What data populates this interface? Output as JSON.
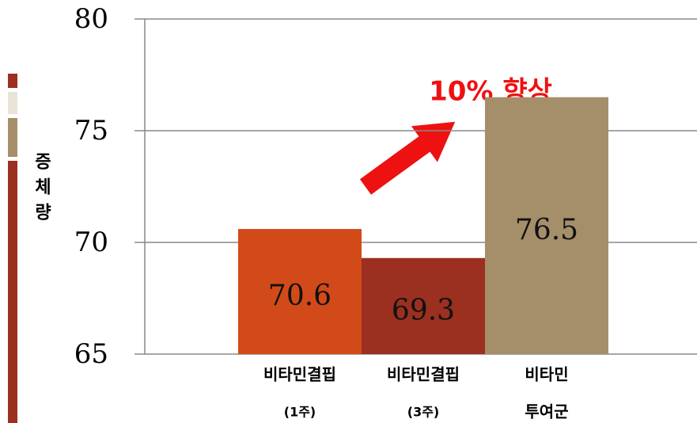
{
  "chart_data": {
    "type": "bar",
    "y_label": "증체량",
    "annotation": "10% 향상",
    "categories": [
      [
        "비타민결핍",
        "(1주)"
      ],
      [
        "비타민결핍",
        "(3주)"
      ],
      [
        "비타민",
        "투여군"
      ]
    ],
    "values": [
      70.6,
      69.3,
      76.5
    ],
    "colors": [
      "#d24a19",
      "#9b2f20",
      "#a58f6b"
    ],
    "ylim": [
      65,
      80
    ],
    "yticks": [
      65,
      70,
      75,
      80
    ],
    "grid": true
  }
}
